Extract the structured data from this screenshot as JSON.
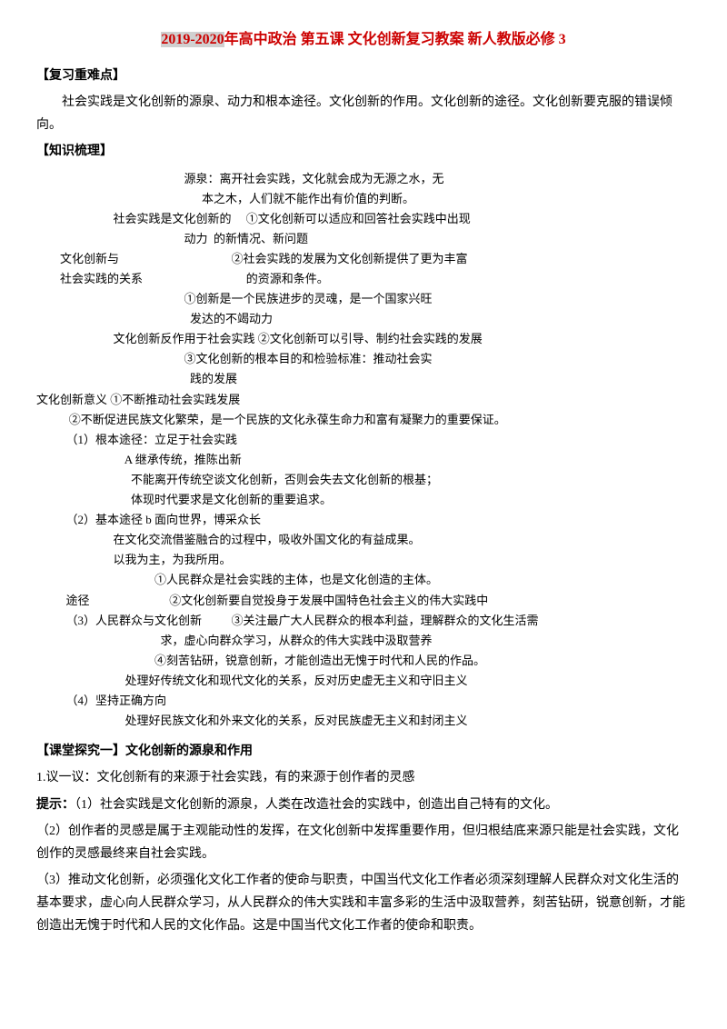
{
  "title": {
    "prefix": "2019-2020",
    "rest": "年高中政治 第五课 文化创新复习教案 新人教版必修 3"
  },
  "sections": {
    "review_header": "【复习重难点】",
    "review_body": "社会实践是文化创新的源泉、动力和根本途径。文化创新的作用。文化创新的途径。文化创新要克服的错误倾向。",
    "knowledge_header": "【知识梳理】"
  },
  "outline": {
    "l1": "                                                  源泉：离开社会实践，文化就会成为无源之水，无",
    "l2": "                                                        本之木，人们就不能作出有价值的判断。",
    "l3": "                          社会实践是文化创新的     ①文化创新可以适应和回答社会实践中出现",
    "l4": "                                                  动力  的新情况、新问题",
    "l5": "        文化创新与                                      ②社会实践的发展为文化创新提供了更为丰富",
    "l6": "        社会实践的关系                                   的资源和条件。",
    "l7": "                                                  ①创新是一个民族进步的灵魂，是一个国家兴旺",
    "l8": "                                                    发达的不竭动力",
    "l9": "                          文化创新反作用于社会实践 ②文化创新可以引导、制约社会实践的发展",
    "l10": "                                                  ③文化创新的根本目的和检验标准：推动社会实",
    "l11": "                                                    践的发展",
    "l12": "文化创新意义 ①不断推动社会实践发展",
    "l13": "           ②不断促进民族文化繁荣，是一个民族的文化永葆生命力和富有凝聚力的重要保证。",
    "l14": "          （1）根本途径：立足于社会实践",
    "l15": "                              A 继承传统，推陈出新",
    "l16": "                                不能离开传统空谈文化创新，否则会失去文化创新的根基；",
    "l17": "                                体现时代要求是文化创新的重要追求。",
    "l18": "          （2）基本途径 b 面向世界，博采众长",
    "l19": "                          在文化交流借鉴融合的过程中，吸收外国文化的有益成果。",
    "l20": "                          以我为主，为我所用。",
    "l21": "                                        ①人民群众是社会实践的主体，也是文化创造的主体。",
    "l22": "          途径                           ②文化创新要自觉投身于发展中国特色社会主义的伟大实践中",
    "l23": "          （3）人民群众与文化创新          ③关注最广大人民群众的根本利益，理解群众的文化生活需",
    "l24": "                                          求，虚心向群众学习，从群众的伟大实践中汲取营养",
    "l25": "                                        ④刻苦钻研，锐意创新，才能创造出无愧于时代和人民的作品。",
    "l26": "",
    "l27": "                              处理好传统文化和现代文化的关系，反对历史虚无主义和守旧主义",
    "l28": "          （4）坚持正确方向",
    "l29": "                              处理好民族文化和外来文化的关系，反对民族虚无主义和封闭主义"
  },
  "inquiry": {
    "header": "【课堂探究一】文化创新的源泉和作用",
    "q1": "1.议一议：文化创新有的来源于社会实践，有的来源于创作者的灵感",
    "a1_label": "提示：",
    "a1": "（1）社会实践是文化创新的源泉，人类在改造社会的实践中，创造出自己特有的文化。",
    "a2": "（2）创作者的灵感是属于主观能动性的发挥，在文化创新中发挥重要作用，但归根结底来源只能是社会实践，文化创作的灵感最终来自社会实践。",
    "a3": "（3）推动文化创新，必须强化文化工作者的使命与职责，中国当代文化工作者必须深刻理解人民群众对文化生活的基本要求，虚心向人民群众学习，从人民群众的伟大实践和丰富多彩的生活中汲取营养，刻苦钻研，锐意创新，才能创造出无愧于时代和人民的文化作品。这是中国当代文化工作者的使命和职责。"
  },
  "colors": {
    "title_color": "#cc0000",
    "highlight_bg": "#d0d0d0",
    "text_color": "#000000",
    "background": "#ffffff"
  },
  "typography": {
    "body_fontsize": 14,
    "title_fontsize": 16,
    "outline_fontsize": 13,
    "font_family": "SimSun"
  }
}
